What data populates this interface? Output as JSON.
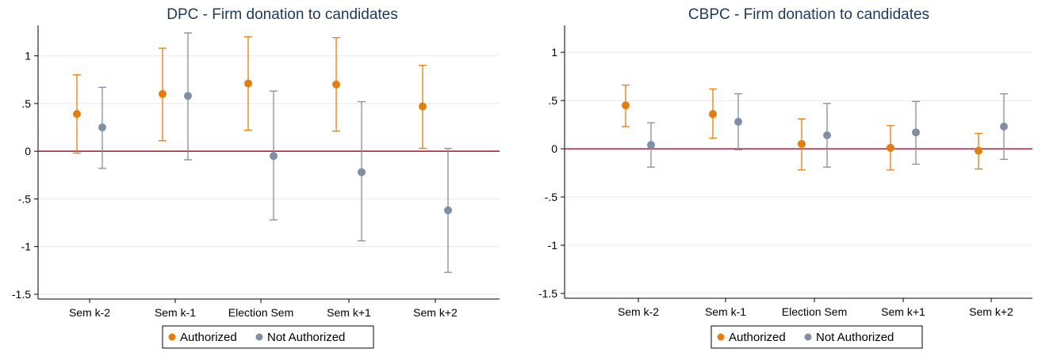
{
  "colors": {
    "authorized": "#e37d0e",
    "not_authorized": "#7f8fa4",
    "zero_line": "#a8112a",
    "grid": "#e8e8e8",
    "title": "#1b3a5c"
  },
  "legend": {
    "placement": "bottom-center"
  },
  "chart_data": [
    {
      "type": "scatter",
      "title": "DPC - Firm donation to candidates",
      "categories": [
        "Sem k-2",
        "Sem k-1",
        "Election Sem",
        "Sem k+1",
        "Sem k+2"
      ],
      "yticks": [
        1,
        0.5,
        0,
        -0.5,
        -1,
        -1.5
      ],
      "ytick_labels": [
        "1",
        ".5",
        "0",
        "-.5",
        "-1",
        "-1.5"
      ],
      "ylim": [
        -1.55,
        1.32
      ],
      "grid": true,
      "reference_line": 0,
      "series": [
        {
          "name": "Authorized",
          "estimate": [
            0.39,
            0.6,
            0.71,
            0.7,
            0.47
          ],
          "lower": [
            -0.02,
            0.11,
            0.22,
            0.21,
            0.03
          ],
          "upper": [
            0.8,
            1.08,
            1.2,
            1.19,
            0.9
          ]
        },
        {
          "name": "Not Authorized",
          "estimate": [
            0.25,
            0.58,
            -0.05,
            -0.22,
            -0.62
          ],
          "lower": [
            -0.18,
            -0.09,
            -0.72,
            -0.94,
            -1.27
          ],
          "upper": [
            0.67,
            1.24,
            0.63,
            0.52,
            0.03
          ]
        }
      ]
    },
    {
      "type": "scatter",
      "title": "CBPC - Firm donation to candidates",
      "categories": [
        "Sem k-2",
        "Sem k-1",
        "Election Sem",
        "Sem k+1",
        "Sem k+2"
      ],
      "yticks": [
        1,
        0.5,
        0,
        -0.5,
        -1,
        -1.5
      ],
      "ytick_labels": [
        "1",
        ".5",
        "0",
        "-.5",
        "-1",
        "-1.5"
      ],
      "ylim": [
        -1.55,
        1.28
      ],
      "grid": true,
      "reference_line": 0,
      "series": [
        {
          "name": "Authorized",
          "estimate": [
            0.45,
            0.36,
            0.05,
            0.01,
            -0.02
          ],
          "lower": [
            0.23,
            0.11,
            -0.22,
            -0.22,
            -0.21
          ],
          "upper": [
            0.66,
            0.62,
            0.31,
            0.24,
            0.16
          ]
        },
        {
          "name": "Not Authorized",
          "estimate": [
            0.04,
            0.28,
            0.14,
            0.17,
            0.23
          ],
          "lower": [
            -0.19,
            -0.01,
            -0.19,
            -0.16,
            -0.11
          ],
          "upper": [
            0.27,
            0.57,
            0.47,
            0.49,
            0.57
          ]
        }
      ]
    }
  ]
}
